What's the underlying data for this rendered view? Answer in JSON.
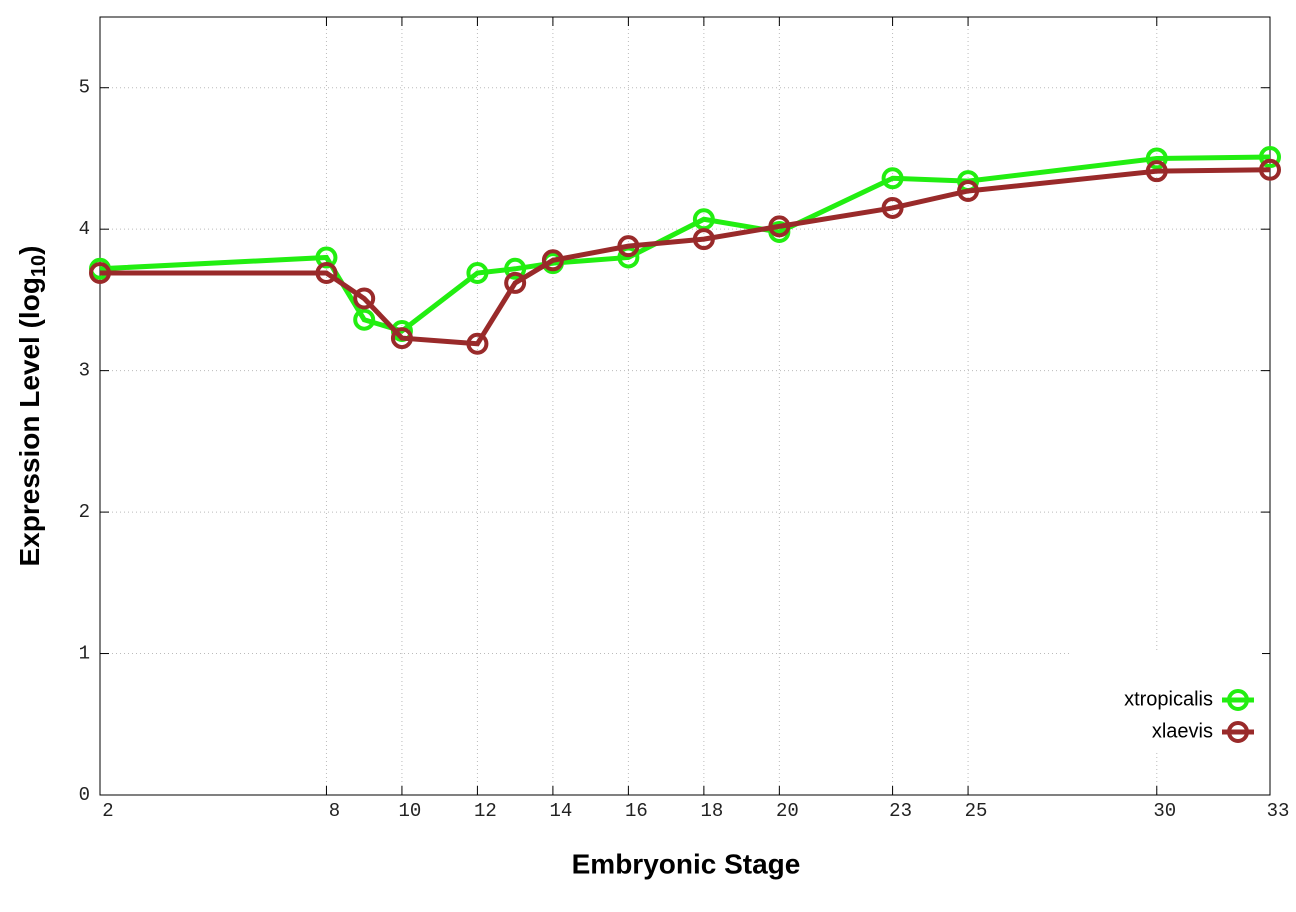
{
  "chart_data": {
    "type": "line",
    "x_label": "Embryonic Stage",
    "y_label": {
      "text": "Expression Level (log",
      "subscript": "10",
      "suffix": ")"
    },
    "x": [
      2,
      8,
      9,
      10,
      12,
      13,
      14,
      16,
      18,
      20,
      23,
      25,
      30,
      33
    ],
    "series": [
      {
        "name": "xtropicalis",
        "color": "#22ee11",
        "values": [
          3.72,
          3.8,
          3.36,
          3.28,
          3.69,
          3.72,
          3.76,
          3.8,
          4.07,
          3.98,
          4.36,
          4.34,
          4.5,
          4.51
        ]
      },
      {
        "name": "xlaevis",
        "color": "#992a2a",
        "values": [
          3.69,
          3.69,
          3.51,
          3.23,
          3.19,
          3.62,
          3.78,
          3.88,
          3.93,
          4.02,
          4.15,
          4.27,
          4.41,
          4.42
        ]
      }
    ],
    "xlim": [
      2,
      33
    ],
    "ylim": [
      0,
      5.5
    ],
    "xticks": [
      2,
      8,
      10,
      12,
      14,
      16,
      18,
      20,
      23,
      25,
      30,
      33
    ],
    "yticks": [
      0,
      1,
      2,
      3,
      4,
      5
    ],
    "grid": true,
    "legend": "lower right"
  }
}
